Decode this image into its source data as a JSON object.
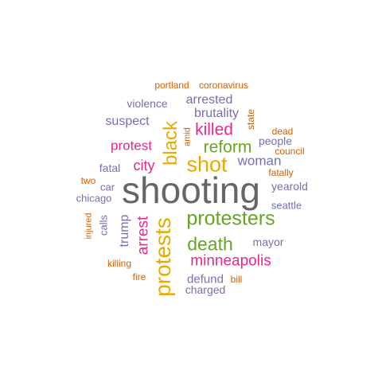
{
  "palette": {
    "orange": "#d95f02",
    "purple": "#7570b3",
    "magenta": "#e7298a",
    "green": "#66a61e",
    "gold": "#e6ab02",
    "gray": "#666666"
  },
  "words": [
    {
      "text": "shooting",
      "color": "gray",
      "weight": 10,
      "orientation": "horizontal"
    },
    {
      "text": "protesters",
      "color": "green",
      "weight": 7,
      "orientation": "horizontal"
    },
    {
      "text": "protests",
      "color": "gold",
      "weight": 7,
      "orientation": "vertical"
    },
    {
      "text": "shot",
      "color": "gold",
      "weight": 6,
      "orientation": "horizontal"
    },
    {
      "text": "black",
      "color": "gold",
      "weight": 6,
      "orientation": "vertical"
    },
    {
      "text": "death",
      "color": "green",
      "weight": 6,
      "orientation": "horizontal"
    },
    {
      "text": "killed",
      "color": "magenta",
      "weight": 5,
      "orientation": "horizontal"
    },
    {
      "text": "reform",
      "color": "green",
      "weight": 5,
      "orientation": "horizontal"
    },
    {
      "text": "minneapolis",
      "color": "magenta",
      "weight": 5,
      "orientation": "horizontal"
    },
    {
      "text": "arrest",
      "color": "magenta",
      "weight": 5,
      "orientation": "vertical"
    },
    {
      "text": "protest",
      "color": "magenta",
      "weight": 4,
      "orientation": "horizontal"
    },
    {
      "text": "city",
      "color": "magenta",
      "weight": 4,
      "orientation": "horizontal"
    },
    {
      "text": "woman",
      "color": "purple",
      "weight": 4,
      "orientation": "horizontal"
    },
    {
      "text": "arrested",
      "color": "purple",
      "weight": 4,
      "orientation": "horizontal"
    },
    {
      "text": "brutality",
      "color": "purple",
      "weight": 4,
      "orientation": "horizontal"
    },
    {
      "text": "suspect",
      "color": "purple",
      "weight": 4,
      "orientation": "horizontal"
    },
    {
      "text": "trump",
      "color": "purple",
      "weight": 4,
      "orientation": "vertical"
    },
    {
      "text": "defund",
      "color": "purple",
      "weight": 4,
      "orientation": "horizontal"
    },
    {
      "text": "charged",
      "color": "purple",
      "weight": 3,
      "orientation": "horizontal"
    },
    {
      "text": "fatal",
      "color": "purple",
      "weight": 3,
      "orientation": "horizontal"
    },
    {
      "text": "violence",
      "color": "purple",
      "weight": 3,
      "orientation": "horizontal"
    },
    {
      "text": "mayor",
      "color": "purple",
      "weight": 3,
      "orientation": "horizontal"
    },
    {
      "text": "people",
      "color": "purple",
      "weight": 3,
      "orientation": "horizontal"
    },
    {
      "text": "yearold",
      "color": "purple",
      "weight": 3,
      "orientation": "horizontal"
    },
    {
      "text": "seattle",
      "color": "purple",
      "weight": 3,
      "orientation": "horizontal"
    },
    {
      "text": "chicago",
      "color": "purple",
      "weight": 3,
      "orientation": "horizontal"
    },
    {
      "text": "car",
      "color": "purple",
      "weight": 3,
      "orientation": "horizontal"
    },
    {
      "text": "calls",
      "color": "purple",
      "weight": 3,
      "orientation": "vertical"
    },
    {
      "text": "coronavirus",
      "color": "orange",
      "weight": 2,
      "orientation": "horizontal"
    },
    {
      "text": "portland",
      "color": "orange",
      "weight": 2,
      "orientation": "horizontal"
    },
    {
      "text": "state",
      "color": "orange",
      "weight": 2,
      "orientation": "vertical"
    },
    {
      "text": "amid",
      "color": "orange",
      "weight": 2,
      "orientation": "vertical"
    },
    {
      "text": "dead",
      "color": "orange",
      "weight": 2,
      "orientation": "horizontal"
    },
    {
      "text": "council",
      "color": "orange",
      "weight": 2,
      "orientation": "horizontal"
    },
    {
      "text": "fatally",
      "color": "orange",
      "weight": 2,
      "orientation": "horizontal"
    },
    {
      "text": "two",
      "color": "orange",
      "weight": 2,
      "orientation": "horizontal"
    },
    {
      "text": "injured",
      "color": "orange",
      "weight": 2,
      "orientation": "vertical"
    },
    {
      "text": "killing",
      "color": "orange",
      "weight": 2,
      "orientation": "horizontal"
    },
    {
      "text": "fire",
      "color": "orange",
      "weight": 2,
      "orientation": "horizontal"
    },
    {
      "text": "bill",
      "color": "orange",
      "weight": 2,
      "orientation": "horizontal"
    }
  ]
}
